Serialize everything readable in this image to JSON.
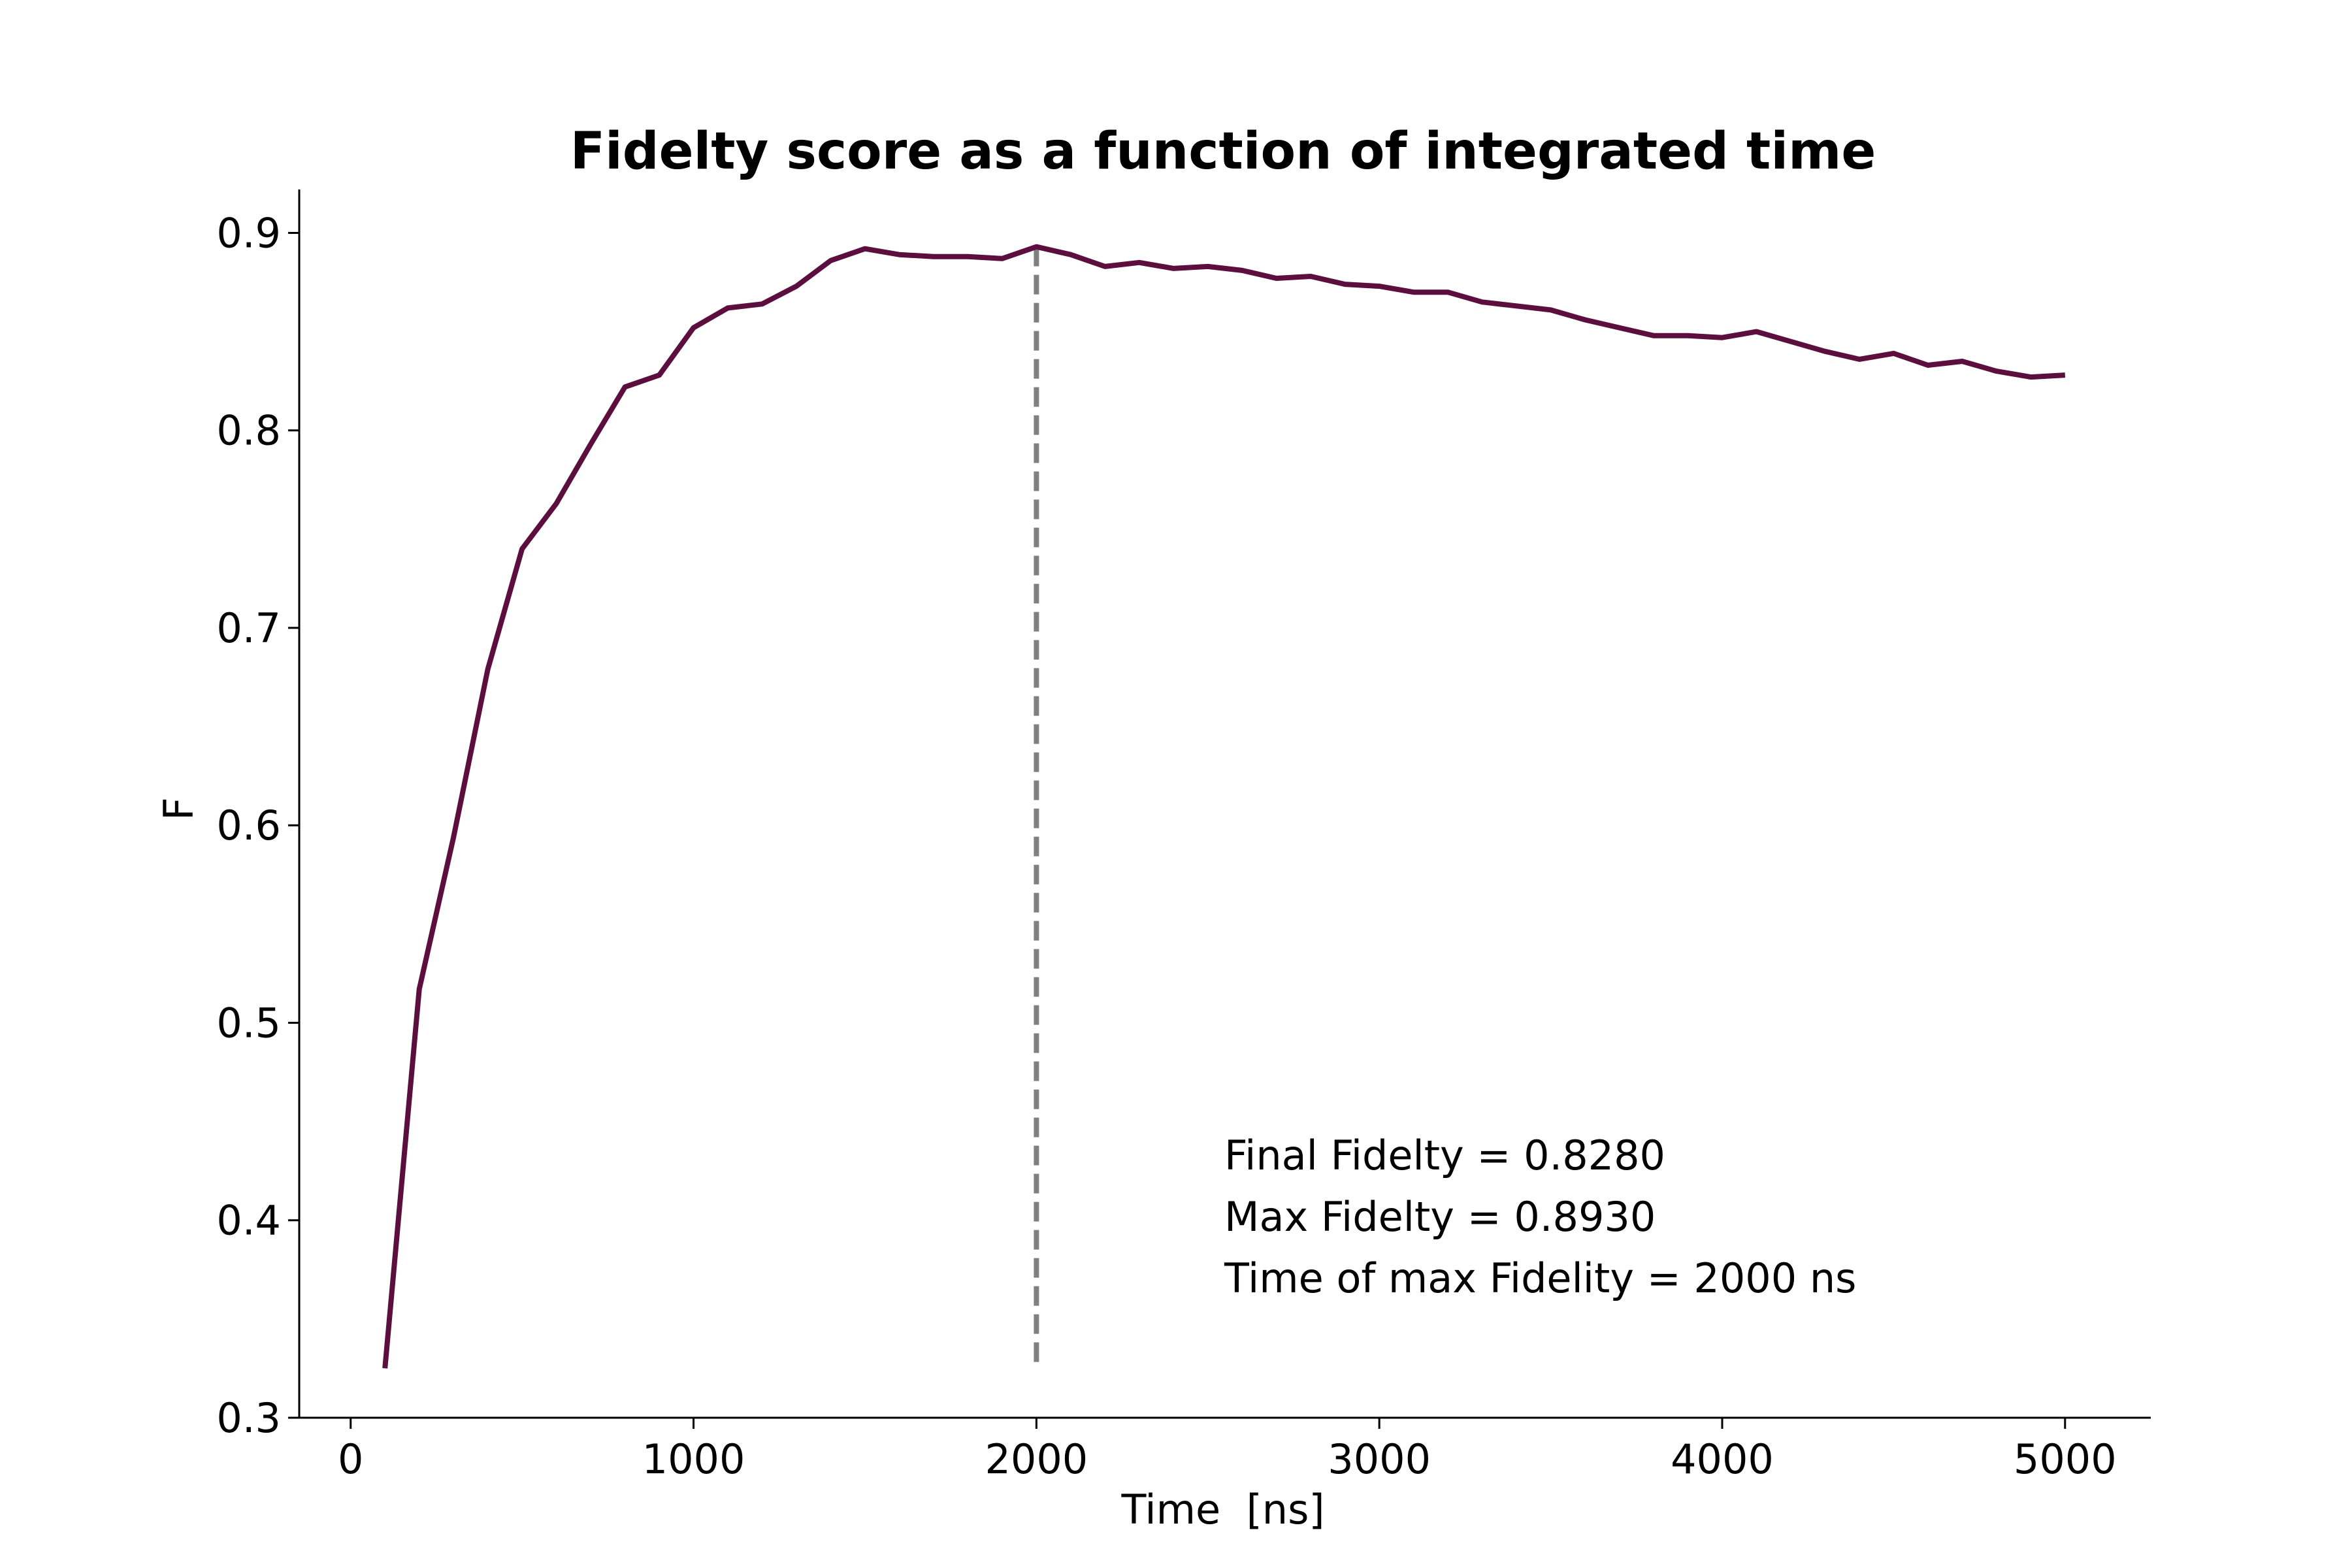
{
  "chart_data": {
    "type": "line",
    "title": "Fidelty score as a function of integrated time",
    "xlabel": "Time  [ns]",
    "ylabel": "F",
    "xlim": [
      -150,
      5250
    ],
    "ylim": [
      0.3,
      0.922
    ],
    "xticks": [
      0,
      1000,
      2000,
      3000,
      4000,
      5000
    ],
    "xtick_labels": [
      "0",
      "1000",
      "2000",
      "3000",
      "4000",
      "5000"
    ],
    "yticks": [
      0.3,
      0.4,
      0.5,
      0.6,
      0.7,
      0.8,
      0.9
    ],
    "ytick_labels": [
      "0.3",
      "0.4",
      "0.5",
      "0.6",
      "0.7",
      "0.8",
      "0.9"
    ],
    "grid": false,
    "series": [
      {
        "color": "#5c0f3e",
        "x": [
          100,
          200,
          300,
          400,
          500,
          600,
          700,
          800,
          900,
          1000,
          1100,
          1200,
          1300,
          1400,
          1500,
          1600,
          1700,
          1800,
          1900,
          2000,
          2100,
          2200,
          2300,
          2400,
          2500,
          2600,
          2700,
          2800,
          2900,
          3000,
          3100,
          3200,
          3300,
          3400,
          3500,
          3600,
          3700,
          3800,
          3900,
          4000,
          4100,
          4200,
          4300,
          4400,
          4500,
          4600,
          4700,
          4800,
          4900,
          5000
        ],
        "y": [
          0.325,
          0.517,
          0.594,
          0.679,
          0.74,
          0.763,
          0.793,
          0.822,
          0.828,
          0.852,
          0.862,
          0.864,
          0.873,
          0.886,
          0.892,
          0.889,
          0.888,
          0.888,
          0.887,
          0.893,
          0.889,
          0.883,
          0.885,
          0.882,
          0.883,
          0.881,
          0.877,
          0.878,
          0.874,
          0.873,
          0.87,
          0.87,
          0.865,
          0.863,
          0.861,
          0.856,
          0.852,
          0.848,
          0.848,
          0.847,
          0.85,
          0.845,
          0.84,
          0.836,
          0.839,
          0.833,
          0.835,
          0.83,
          0.827,
          0.828
        ]
      }
    ],
    "vline": {
      "x": 2000,
      "y_from": 0.327,
      "y_to": 0.893,
      "color": "#808080",
      "style": "dashed"
    },
    "annotations": [
      "Final Fidelty = 0.8280",
      "Max Fidelty = 0.8930",
      "Time of max Fidelity = 2000 ns"
    ]
  }
}
